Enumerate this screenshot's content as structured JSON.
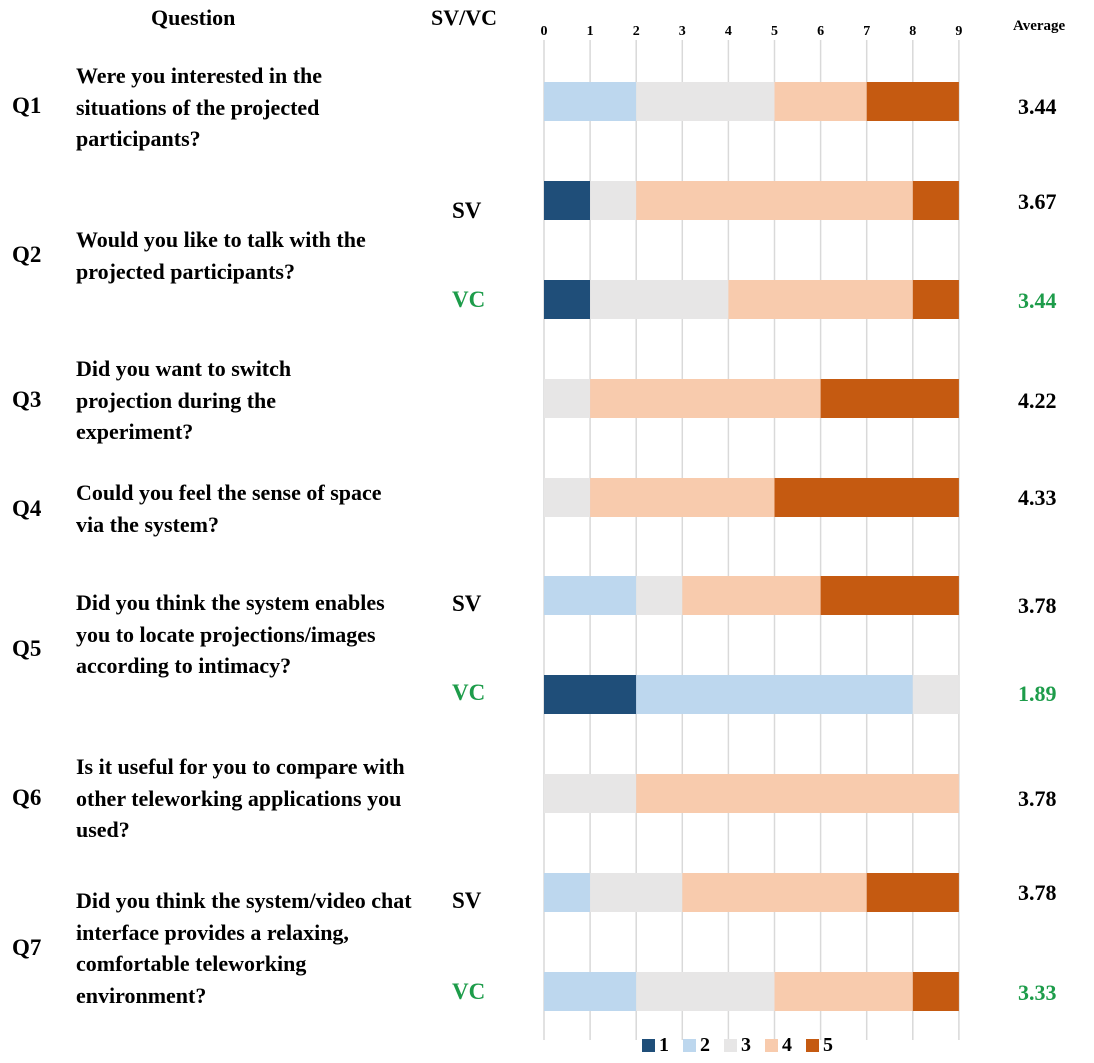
{
  "headers": {
    "question": "Question",
    "condition": "SV/VC",
    "average": "Average"
  },
  "colors": {
    "1": "#1f4e79",
    "2": "#bdd7ee",
    "3": "#e7e6e6",
    "4": "#f8cbad",
    "5": "#c55a11",
    "vc_text": "#1d9c4a",
    "grid": "#d9d9d9"
  },
  "questions": [
    {
      "id": "Q1",
      "text": "Were you interested in the situations of the projected participants?"
    },
    {
      "id": "Q2",
      "text": "Would you like to talk with the projected participants?"
    },
    {
      "id": "Q3",
      "text": "Did you want to switch projection during the experiment?"
    },
    {
      "id": "Q4",
      "text": "Could you feel the sense of space via the system?"
    },
    {
      "id": "Q5",
      "text": "Did you think the system enables you to locate projections/images according to intimacy?"
    },
    {
      "id": "Q6",
      "text": "Is it useful for you to compare with other teleworking applications you used?"
    },
    {
      "id": "Q7",
      "text": "Did you think the system/video chat interface provides a relaxing, comfortable teleworking environment?"
    }
  ],
  "chart_data": {
    "type": "bar",
    "orientation": "horizontal",
    "stacked": true,
    "x_ticks": [
      "0",
      "1",
      "2",
      "3",
      "4",
      "5",
      "6",
      "7",
      "8",
      "9"
    ],
    "xlim": [
      0,
      9
    ],
    "grid": true,
    "legend_position": "bottom",
    "legend": [
      "1",
      "2",
      "3",
      "4",
      "5"
    ],
    "rows": [
      {
        "question": "Q1",
        "condition": "",
        "counts": [
          0,
          2,
          3,
          2,
          2
        ],
        "average": "3.44"
      },
      {
        "question": "Q2",
        "condition": "SV",
        "counts": [
          1,
          0,
          1,
          6,
          1
        ],
        "average": "3.67"
      },
      {
        "question": "Q2",
        "condition": "VC",
        "counts": [
          1,
          0,
          3,
          4,
          1
        ],
        "average": "3.44"
      },
      {
        "question": "Q3",
        "condition": "",
        "counts": [
          0,
          0,
          1,
          5,
          3
        ],
        "average": "4.22"
      },
      {
        "question": "Q4",
        "condition": "",
        "counts": [
          0,
          0,
          1,
          4,
          4
        ],
        "average": "4.33"
      },
      {
        "question": "Q5",
        "condition": "SV",
        "counts": [
          0,
          2,
          1,
          3,
          3
        ],
        "average": "3.78"
      },
      {
        "question": "Q5",
        "condition": "VC",
        "counts": [
          2,
          6,
          1,
          0,
          0
        ],
        "average": "1.89"
      },
      {
        "question": "Q6",
        "condition": "",
        "counts": [
          0,
          0,
          2,
          7,
          0
        ],
        "average": "3.78"
      },
      {
        "question": "Q7",
        "condition": "SV",
        "counts": [
          0,
          1,
          2,
          4,
          2
        ],
        "average": "3.78"
      },
      {
        "question": "Q7",
        "condition": "VC",
        "counts": [
          0,
          2,
          3,
          3,
          1
        ],
        "average": "3.33"
      }
    ]
  }
}
